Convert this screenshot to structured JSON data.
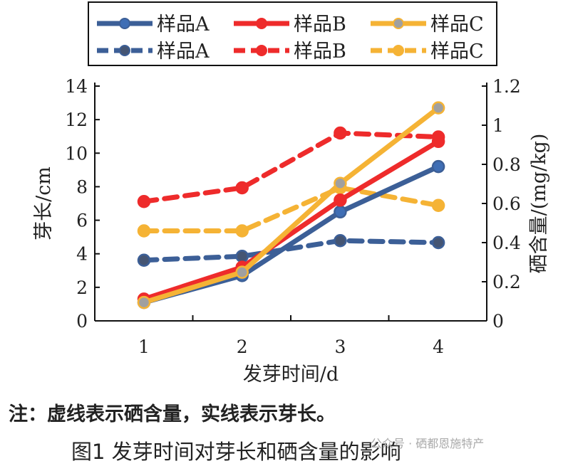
{
  "chart_data": {
    "type": "line",
    "title": "",
    "x": [
      1,
      2,
      3,
      4
    ],
    "xlabel": "发芽时间/d",
    "ylabel": "芽长/cm",
    "y2label": "硒含量/(mg/kg)",
    "ylim": [
      0,
      14
    ],
    "y2lim": [
      0,
      1.2
    ],
    "yticks": [
      "0",
      "2",
      "4",
      "6",
      "8",
      "10",
      "12",
      "14"
    ],
    "y2ticks": [
      "0",
      "0.2",
      "0.4",
      "0.6",
      "0.8",
      "1",
      "1.2"
    ],
    "xticks": [
      "1",
      "2",
      "3",
      "4"
    ],
    "legend_position": "top",
    "series": [
      {
        "name": "样品A",
        "axis": "left",
        "style": "solid",
        "color": "#3c5f97",
        "values": [
          1.1,
          2.7,
          6.5,
          9.2
        ]
      },
      {
        "name": "样品B",
        "axis": "left",
        "style": "solid",
        "color": "#ee2b2b",
        "values": [
          1.3,
          3.2,
          7.2,
          10.7
        ]
      },
      {
        "name": "样品C",
        "axis": "left",
        "style": "solid",
        "color": "#f5b335",
        "values": [
          1.1,
          2.9,
          8.2,
          12.7
        ]
      },
      {
        "name": "样品A",
        "axis": "right",
        "style": "dashed",
        "color": "#3c5f97",
        "values": [
          0.31,
          0.33,
          0.41,
          0.4
        ]
      },
      {
        "name": "样品B",
        "axis": "right",
        "style": "dashed",
        "color": "#ee2b2b",
        "values": [
          0.61,
          0.68,
          0.96,
          0.94
        ]
      },
      {
        "name": "样品C",
        "axis": "right",
        "style": "dashed",
        "color": "#f5b335",
        "values": [
          0.46,
          0.46,
          0.68,
          0.59
        ]
      }
    ]
  },
  "note": "注：虚线表示硒含量，实线表示芽长。",
  "caption": "图1   发芽时间对芽长和硒含量的影响",
  "watermark": "公众号 · 硒都恩施特产"
}
